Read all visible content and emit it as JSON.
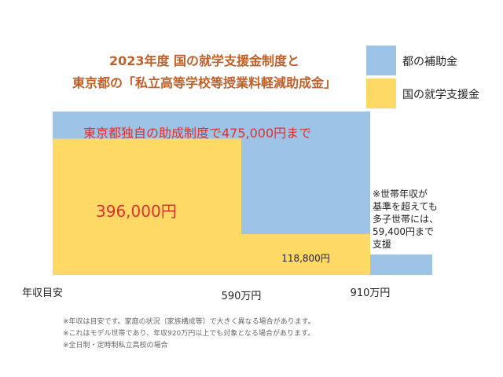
{
  "header": {
    "title_line1": "2023年度 国の就学支援金制度と",
    "title_line2": "東京都の「私立高等学校等授業料軽減助成金」"
  },
  "legend": [
    {
      "label": "都の補助金",
      "color": "#9dc3e6"
    },
    {
      "label": "国の就学支援金",
      "color": "#ffd966"
    }
  ],
  "notes": [
    "※年収は目安です。家庭の状況（家族構成等）で大きく異なる場合があります。",
    "※これはモデル世帯であり、年収920万円以上でも対象となる場合があります。",
    "※全日制・定時制私立高校の場合"
  ],
  "chart_data": {
    "type": "area",
    "title": "2023年度 国の就学支援金制度と東京都の「私立高等学校等授業料軽減助成金」",
    "x_axis_title": "年収目安",
    "x_ticks": [
      "590万円",
      "910万円"
    ],
    "ylim": [
      0,
      475000
    ],
    "series": [
      {
        "name": "国の就学支援金",
        "color": "#ffd966",
        "segments": [
          {
            "x_from": 0,
            "x_to": 590,
            "value": 396000,
            "label": "396,000円"
          },
          {
            "x_from": 590,
            "x_to": 910,
            "value": 118800,
            "label": "118,800円"
          }
        ]
      },
      {
        "name": "都の補助金",
        "color": "#9dc3e6",
        "segments": [
          {
            "x_from": 0,
            "x_to": 590,
            "value": 79000
          },
          {
            "x_from": 590,
            "x_to": 910,
            "value": 356200
          },
          {
            "x_from": 910,
            "x_to": 1000,
            "value": 59400
          }
        ]
      }
    ],
    "annotations": {
      "tokyo_cap": "東京都独自の助成制度で475,000円まで",
      "multi_child": [
        "※世帯年収が",
        "基準を超えても",
        "多子世帯には、",
        "59,400円まで",
        "支援"
      ]
    }
  }
}
